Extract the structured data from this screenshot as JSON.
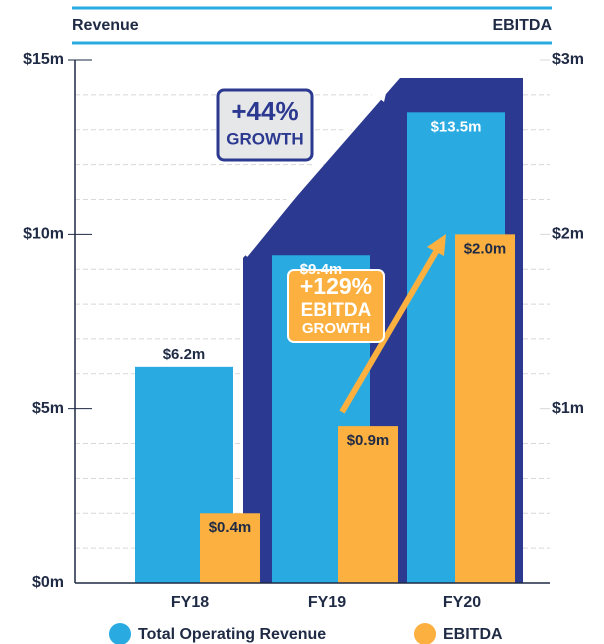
{
  "chart_data": {
    "type": "bar",
    "y_label": "Revenue",
    "y2_label": "EBITDA",
    "categories": [
      "FY18",
      "FY19",
      "FY20"
    ],
    "series": [
      {
        "name": "Total Operating Revenue",
        "color": "#29abe2",
        "values": [
          6.2,
          9.4,
          13.5
        ],
        "value_labels": [
          "$6.2m",
          "$9.4m",
          "$13.5m"
        ]
      },
      {
        "name": "EBITDA",
        "color": "#fbb040",
        "axis": "y2",
        "values": [
          0.4,
          0.9,
          2.0
        ],
        "value_labels": [
          "$0.4m",
          "$0.9m",
          "$2.0m"
        ]
      }
    ],
    "ylim": [
      0,
      15
    ],
    "yticks": [
      {
        "value": 0,
        "label": "$0m"
      },
      {
        "value": 5,
        "label": "$5m"
      },
      {
        "value": 10,
        "label": "$10m"
      },
      {
        "value": 15,
        "label": "$15m"
      }
    ],
    "y2lim": [
      0,
      3
    ],
    "y2ticks": [
      {
        "value": 1,
        "label": "$1m"
      },
      {
        "value": 2,
        "label": "$2m"
      },
      {
        "value": 3,
        "label": "$3m"
      }
    ],
    "grid_yticks": [
      1,
      2,
      3,
      4,
      6,
      7,
      8,
      9,
      11,
      12,
      13,
      14
    ],
    "annotations": [
      {
        "lines": [
          "+44%",
          "GROWTH"
        ]
      },
      {
        "lines": [
          "+129%",
          "EBITDA",
          "GROWTH"
        ]
      }
    ],
    "legend": "bottom"
  }
}
